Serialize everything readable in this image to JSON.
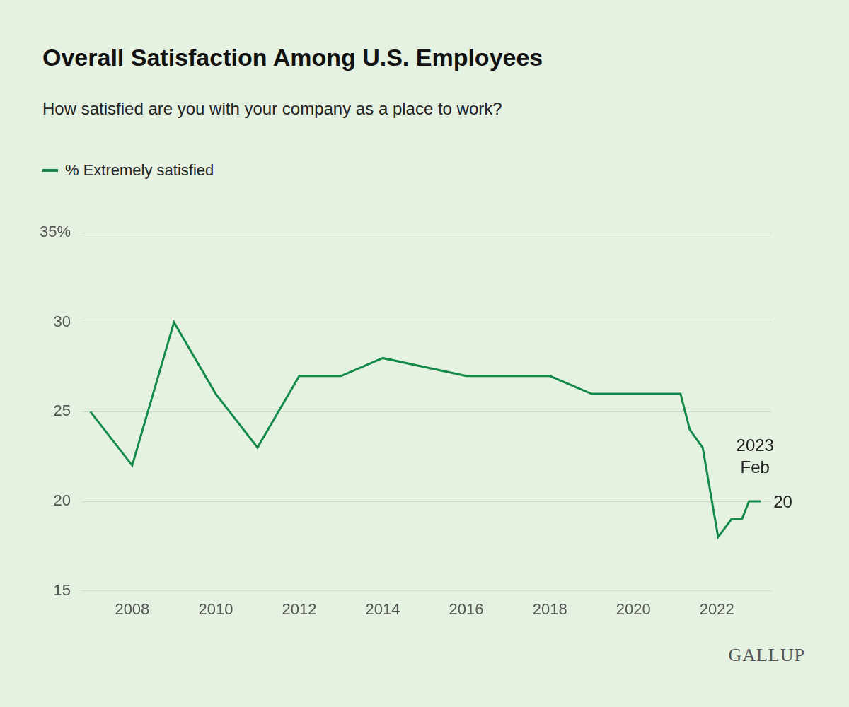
{
  "chart_data": {
    "type": "line",
    "title": "Overall Satisfaction Among U.S. Employees",
    "subtitle": "How satisfied are you with your company as a place to work?",
    "x": [
      2007,
      2008,
      2009,
      2010,
      2011,
      2012,
      2013,
      2014,
      2016,
      2017,
      2018,
      2019,
      2020,
      2021.13,
      2021.35,
      2021.66,
      2022.03,
      2022.35,
      2022.6,
      2022.77,
      2023.05
    ],
    "series": [
      {
        "name": "% Extremely satisfied",
        "color": "#138a4a",
        "values": [
          25,
          22,
          30,
          26,
          23,
          27,
          27,
          28,
          27,
          27,
          27,
          26,
          26,
          26,
          24,
          23,
          18,
          19,
          19,
          20,
          20
        ]
      }
    ],
    "xlim": [
      2006.8,
      2023.3
    ],
    "xticks": [
      2008,
      2010,
      2012,
      2014,
      2016,
      2018,
      2020,
      2022
    ],
    "ylim": [
      15,
      35
    ],
    "yticks": [
      15,
      20,
      25,
      30,
      {
        "value": 35,
        "label": "35%"
      }
    ],
    "grid": true,
    "legend": "top-left",
    "annotations": [
      {
        "text": "2023 Feb",
        "x": 2023.05,
        "y": 20
      },
      {
        "text": "20",
        "x": 2023.05,
        "y": 20
      }
    ],
    "source": "GALLUP"
  }
}
